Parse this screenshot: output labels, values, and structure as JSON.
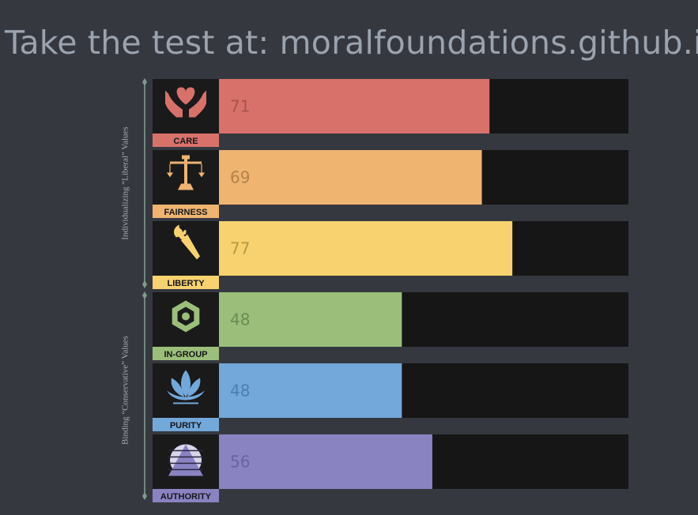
{
  "header": {
    "title": "Take the test at: moralfoundations.github.io"
  },
  "groups": [
    {
      "label": "Individualizing  “Liberal”  Values"
    },
    {
      "label": "Binding  “Conservative”  Values"
    }
  ],
  "chart_data": {
    "type": "bar",
    "categories": [
      "CARE",
      "FAIRNESS",
      "LIBERTY",
      "IN-GROUP",
      "PURITY",
      "AUTHORITY"
    ],
    "values": [
      71,
      69,
      77,
      48,
      48,
      56
    ],
    "ylim": [
      0,
      100
    ],
    "groups": [
      {
        "name": "Individualizing “Liberal” Values",
        "categories": [
          "CARE",
          "FAIRNESS",
          "LIBERTY"
        ]
      },
      {
        "name": "Binding “Conservative” Values",
        "categories": [
          "IN-GROUP",
          "PURITY",
          "AUTHORITY"
        ]
      }
    ],
    "colors": [
      "#d9716b",
      "#eeb470",
      "#f7d26e",
      "#9bbf7a",
      "#73a8da",
      "#8a83c2"
    ],
    "value_text_colors": [
      "#a8524c",
      "#b38149",
      "#b59a45",
      "#6c8a52",
      "#4d7fb0",
      "#6a63a3"
    ],
    "icons": [
      "hands-heart-icon",
      "scales-icon",
      "torch-icon",
      "hexagon-icon",
      "lotus-icon",
      "pyramid-icon"
    ],
    "track_color": "#161616",
    "grid": false
  }
}
